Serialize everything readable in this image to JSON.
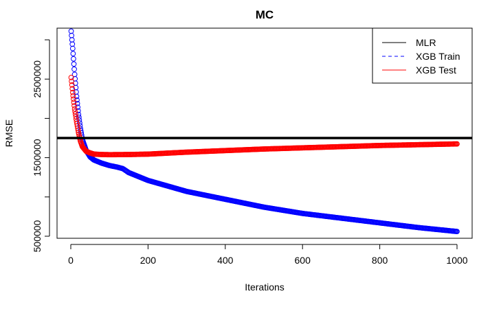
{
  "chart_data": {
    "type": "scatter",
    "title": "MC",
    "xlabel": "Iterations",
    "ylabel": "RMSE",
    "xlim": [
      0,
      1000
    ],
    "ylim": [
      500000,
      3000000
    ],
    "x_ticks": [
      0,
      200,
      400,
      600,
      800,
      1000
    ],
    "y_ticks": [
      500000,
      1500000,
      2500000
    ],
    "y_tick_labels": [
      "500000",
      "1500000",
      "2500000"
    ],
    "grid": false,
    "legend_position": "top-right",
    "mlr_value": 1750000,
    "series": [
      {
        "name": "XGB Train",
        "color": "#0000ff",
        "line_style": "dashed",
        "x": [
          1,
          5,
          10,
          15,
          20,
          25,
          30,
          40,
          50,
          60,
          80,
          100,
          120,
          135,
          150,
          200,
          300,
          400,
          500,
          600,
          700,
          800,
          900,
          1000
        ],
        "values": [
          3110000,
          2890000,
          2560000,
          2280000,
          2050000,
          1870000,
          1730000,
          1590000,
          1510000,
          1470000,
          1430000,
          1400000,
          1380000,
          1360000,
          1310000,
          1210000,
          1070000,
          970000,
          870000,
          790000,
          730000,
          670000,
          610000,
          560000
        ]
      },
      {
        "name": "XGB Test",
        "color": "#ff0000",
        "line_style": "solid",
        "x": [
          1,
          5,
          10,
          15,
          20,
          25,
          30,
          40,
          50,
          60,
          80,
          100,
          150,
          200,
          300,
          400,
          500,
          600,
          700,
          800,
          900,
          1000
        ],
        "values": [
          2520000,
          2330000,
          2120000,
          1960000,
          1820000,
          1710000,
          1640000,
          1580000,
          1560000,
          1545000,
          1540000,
          1538000,
          1540000,
          1545000,
          1570000,
          1590000,
          1610000,
          1625000,
          1640000,
          1655000,
          1665000,
          1675000
        ]
      }
    ],
    "legend": [
      {
        "label": "MLR",
        "color": "#000000",
        "line_style": "solid"
      },
      {
        "label": "XGB Train",
        "color": "#0000ff",
        "line_style": "dashed"
      },
      {
        "label": "XGB Test",
        "color": "#ff0000",
        "line_style": "solid"
      }
    ]
  }
}
